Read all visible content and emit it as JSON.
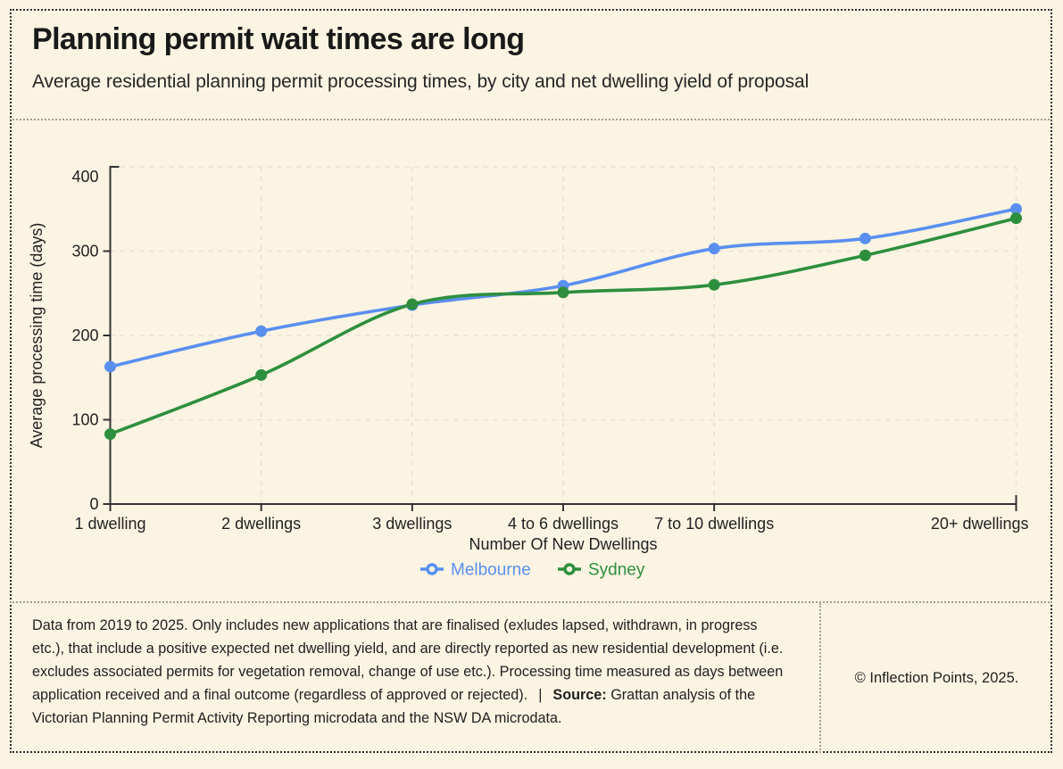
{
  "page": {
    "title": "Planning permit wait times are long",
    "subtitle": "Average residential planning permit processing times, by city and net dwelling yield of proposal"
  },
  "colors": {
    "background": "#fbf4e2",
    "text": "#1f1f1f",
    "axis": "#333333",
    "gridline": "#eadfd8",
    "melbourne": "#5a8ff0",
    "sydney": "#2d8f3e"
  },
  "chart_data": {
    "type": "line",
    "title": "",
    "xlabel": "Number Of New Dwellings",
    "ylabel": "Average processing time (days)",
    "categories": [
      "1 dwelling",
      "2 dwellings",
      "3 dwellings",
      "4 to 6 dwellings",
      "7 to 10 dwellings",
      "",
      "20+ dwellings"
    ],
    "series": [
      {
        "name": "Melbourne",
        "color": "#5a8ff0",
        "values": [
          163,
          205,
          236,
          259,
          303,
          315,
          350
        ]
      },
      {
        "name": "Sydney",
        "color": "#2d8f3e",
        "values": [
          83,
          153,
          237,
          251,
          260,
          295,
          339
        ]
      }
    ],
    "ylim": [
      0,
      400
    ],
    "yticks": [
      0,
      100,
      200,
      300,
      400
    ],
    "grid": true,
    "legend_position": "bottom"
  },
  "legend": {
    "items": [
      {
        "label": "Melbourne",
        "color": "#5a8ff0"
      },
      {
        "label": "Sydney",
        "color": "#2d8f3e"
      }
    ]
  },
  "footer": {
    "note": "Data from 2019 to 2025. Only includes new applications that are finalised (exludes lapsed, withdrawn, in progress etc.), that include a positive expected net dwelling yield, and are directly reported as new residential development (i.e. excludes associated permits for vegetation removal, change of use etc.). Processing time measured as days between application received and a final outcome (regardless of approved or rejected).",
    "separator": "|",
    "source_label": "Source:",
    "source_text": "Grattan analysis of the Victorian Planning Permit Activity Reporting microdata and the NSW DA microdata.",
    "copyright": "© Inflection Points, 2025."
  }
}
